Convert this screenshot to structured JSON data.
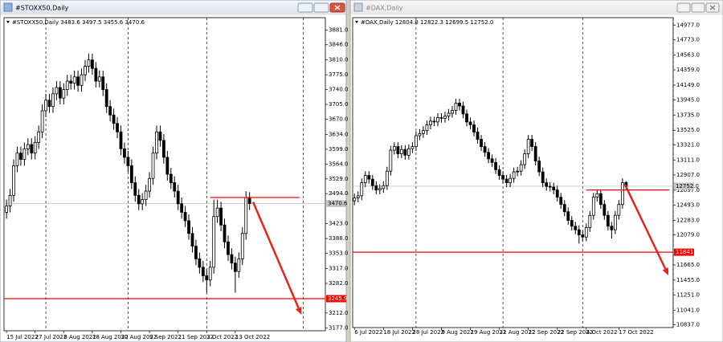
{
  "chart_data": [
    {
      "type": "candlestick",
      "window_title": "#STOXX50,Daily",
      "title": "#STOXX50,Daily  3483.6 3497.5 3455.6 3470.6",
      "xlim": [
        -0.7,
        89.2
      ],
      "ylim": [
        3170,
        3910
      ],
      "xticks": [
        {
          "value": 0,
          "label": "15 Jul 2022"
        },
        {
          "value": 8,
          "label": "27 Jul 2022"
        },
        {
          "value": 16,
          "label": "8 Aug 2022"
        },
        {
          "value": 24,
          "label": "18 Aug 2022"
        },
        {
          "value": 32,
          "label": "30 Aug 2022"
        },
        {
          "value": 40,
          "label": "9 Sep 2022"
        },
        {
          "value": 48,
          "label": "21 Sep 2022"
        },
        {
          "value": 56,
          "label": "3 Oct 2022"
        },
        {
          "value": 64,
          "label": "13 Oct 2022"
        }
      ],
      "yticks": [
        {
          "value": 3881,
          "label": "3881.0"
        },
        {
          "value": 3846,
          "label": "3846.0"
        },
        {
          "value": 3810,
          "label": "3810.0"
        },
        {
          "value": 3775,
          "label": "3775.0"
        },
        {
          "value": 3740,
          "label": "3740.0"
        },
        {
          "value": 3705,
          "label": "3705.0"
        },
        {
          "value": 3670,
          "label": "3670.0"
        },
        {
          "value": 3634,
          "label": "3634.0"
        },
        {
          "value": 3599,
          "label": "3599.0"
        },
        {
          "value": 3564,
          "label": "3564.0"
        },
        {
          "value": 3529,
          "label": "3529.0"
        },
        {
          "value": 3494,
          "label": "3494.0"
        },
        {
          "value": 3423,
          "label": "3423.0"
        },
        {
          "value": 3388,
          "label": "3388.0"
        },
        {
          "value": 3353,
          "label": "3353.0"
        },
        {
          "value": 3317,
          "label": "3317.0"
        },
        {
          "value": 3282,
          "label": "3282.0"
        },
        {
          "value": 3212,
          "label": "3212.0"
        },
        {
          "value": 3177,
          "label": "3177.0"
        }
      ],
      "separators": [
        11,
        34,
        56,
        83
      ],
      "open": [
        3450,
        3465,
        3490,
        3560,
        3590,
        3575,
        3600,
        3610,
        3590,
        3615,
        3640,
        3690,
        3715,
        3700,
        3730,
        3745,
        3720,
        3740,
        3760,
        3755,
        3770,
        3750,
        3775,
        3795,
        3810,
        3790,
        3760,
        3770,
        3740,
        3700,
        3680,
        3660,
        3640,
        3600,
        3580,
        3560,
        3520,
        3490,
        3470,
        3480,
        3500,
        3530,
        3590,
        3640,
        3620,
        3580,
        3540,
        3520,
        3500,
        3470,
        3450,
        3430,
        3400,
        3370,
        3340,
        3320,
        3300,
        3290,
        3320,
        3440,
        3460,
        3420,
        3380,
        3350,
        3330,
        3310,
        3340,
        3400,
        3483.6
      ],
      "high": [
        3480,
        3505,
        3575,
        3605,
        3605,
        3615,
        3625,
        3625,
        3630,
        3655,
        3705,
        3730,
        3730,
        3745,
        3760,
        3760,
        3755,
        3775,
        3775,
        3785,
        3785,
        3790,
        3810,
        3825,
        3825,
        3805,
        3785,
        3785,
        3755,
        3715,
        3695,
        3675,
        3655,
        3615,
        3595,
        3575,
        3535,
        3505,
        3495,
        3515,
        3545,
        3605,
        3655,
        3655,
        3635,
        3595,
        3555,
        3535,
        3515,
        3485,
        3465,
        3445,
        3415,
        3385,
        3355,
        3335,
        3315,
        3335,
        3480,
        3480,
        3475,
        3435,
        3395,
        3365,
        3345,
        3355,
        3415,
        3500,
        3497.5
      ],
      "low": [
        3435,
        3450,
        3475,
        3545,
        3560,
        3560,
        3585,
        3575,
        3575,
        3600,
        3625,
        3675,
        3685,
        3685,
        3715,
        3705,
        3705,
        3725,
        3740,
        3740,
        3735,
        3735,
        3760,
        3780,
        3775,
        3745,
        3745,
        3725,
        3685,
        3665,
        3645,
        3625,
        3585,
        3565,
        3545,
        3505,
        3475,
        3455,
        3455,
        3465,
        3485,
        3515,
        3575,
        3605,
        3565,
        3525,
        3505,
        3485,
        3455,
        3435,
        3415,
        3385,
        3355,
        3325,
        3305,
        3285,
        3260,
        3275,
        3305,
        3425,
        3405,
        3365,
        3335,
        3315,
        3260,
        3295,
        3325,
        3385,
        3455.6
      ],
      "close": [
        3465,
        3490,
        3560,
        3590,
        3575,
        3600,
        3610,
        3590,
        3615,
        3640,
        3690,
        3715,
        3700,
        3730,
        3745,
        3720,
        3740,
        3760,
        3755,
        3770,
        3750,
        3775,
        3795,
        3810,
        3790,
        3760,
        3770,
        3740,
        3700,
        3680,
        3660,
        3640,
        3600,
        3580,
        3560,
        3520,
        3490,
        3470,
        3480,
        3500,
        3530,
        3590,
        3640,
        3620,
        3580,
        3540,
        3520,
        3500,
        3470,
        3450,
        3430,
        3400,
        3370,
        3340,
        3320,
        3300,
        3290,
        3320,
        3440,
        3460,
        3420,
        3380,
        3350,
        3330,
        3310,
        3340,
        3400,
        3485,
        3470.6
      ],
      "current_price": {
        "value": 3470.6,
        "label": "3470.6"
      },
      "levels": [
        {
          "value": 3485,
          "x": [
            57,
            82
          ],
          "color": "#ff0000"
        },
        {
          "value": 3245.9,
          "label": "3245.9",
          "color": "#ff0000"
        }
      ],
      "arrow": {
        "x": [
          69,
          82.5
        ],
        "y": [
          3474,
          3208
        ],
        "color": "#e8231a"
      }
    },
    {
      "type": "candlestick",
      "window_title": "#DAX,Daily",
      "title": "#DAX,Daily  12804.8 12822.3 12699.5 12752.0",
      "xlim": [
        -0.5,
        88
      ],
      "ylim": [
        10800,
        15080
      ],
      "xticks": [
        {
          "value": 0,
          "label": "6 Jul 2022"
        },
        {
          "value": 8,
          "label": "18 Jul 2022"
        },
        {
          "value": 16,
          "label": "28 Jul 2022"
        },
        {
          "value": 24,
          "label": "9 Aug 2022"
        },
        {
          "value": 32,
          "label": "19 Aug 2022"
        },
        {
          "value": 40,
          "label": "31 Aug 2022"
        },
        {
          "value": 48,
          "label": "12 Sep 2022"
        },
        {
          "value": 56,
          "label": "22 Sep 2022"
        },
        {
          "value": 64,
          "label": "4 Oct 2022"
        },
        {
          "value": 73,
          "label": "17 Oct 2022"
        }
      ],
      "yticks": [
        {
          "value": 14977,
          "label": "14977.0"
        },
        {
          "value": 14773,
          "label": "14773.0"
        },
        {
          "value": 14563,
          "label": "14563.0"
        },
        {
          "value": 14359,
          "label": "14359.0"
        },
        {
          "value": 14149,
          "label": "14149.0"
        },
        {
          "value": 13945,
          "label": "13945.0"
        },
        {
          "value": 13735,
          "label": "13735.0"
        },
        {
          "value": 13525,
          "label": "13525.0"
        },
        {
          "value": 13321,
          "label": "13321.0"
        },
        {
          "value": 13111,
          "label": "13111.0"
        },
        {
          "value": 12907,
          "label": "12907.0"
        },
        {
          "value": 12697,
          "label": "12697.0"
        },
        {
          "value": 12493,
          "label": "12493.0"
        },
        {
          "value": 12283,
          "label": "12283.0"
        },
        {
          "value": 12079,
          "label": "12079.0"
        },
        {
          "value": 11665,
          "label": "11665.0"
        },
        {
          "value": 11455,
          "label": "11455.0"
        },
        {
          "value": 11251,
          "label": "11251.0"
        },
        {
          "value": 11041,
          "label": "11041.0"
        },
        {
          "value": 10837,
          "label": "10837.0"
        }
      ],
      "separators": [
        17,
        41,
        63,
        88
      ],
      "open": [
        12550,
        12590,
        12620,
        12800,
        12900,
        12850,
        12760,
        12700,
        12720,
        12760,
        12960,
        13250,
        13300,
        13200,
        13260,
        13180,
        13270,
        13300,
        13450,
        13480,
        13520,
        13600,
        13650,
        13640,
        13700,
        13690,
        13720,
        13760,
        13800,
        13900,
        13860,
        13750,
        13640,
        13600,
        13500,
        13400,
        13300,
        13220,
        13130,
        13080,
        12980,
        12900,
        12850,
        12800,
        12860,
        12950,
        12960,
        13050,
        13200,
        13400,
        13300,
        13100,
        12950,
        12800,
        12750,
        12740,
        12700,
        12600,
        12500,
        12400,
        12280,
        12200,
        12150,
        12080,
        12050,
        12180,
        12350,
        12600,
        12650,
        12500,
        12350,
        12200,
        12150,
        12350,
        12500,
        12804.8
      ],
      "high": [
        12650,
        12680,
        12860,
        12960,
        12960,
        12910,
        12820,
        12780,
        12820,
        13020,
        13310,
        13360,
        13360,
        13320,
        13320,
        13330,
        13360,
        13510,
        13540,
        13580,
        13660,
        13710,
        13710,
        13760,
        13760,
        13780,
        13820,
        13860,
        13960,
        13960,
        13920,
        13810,
        13700,
        13660,
        13560,
        13460,
        13360,
        13280,
        13190,
        13140,
        13040,
        12960,
        12910,
        12920,
        13010,
        13020,
        13110,
        13260,
        13460,
        13460,
        13360,
        13160,
        13010,
        12860,
        12810,
        12800,
        12760,
        12660,
        12560,
        12460,
        12340,
        12260,
        12210,
        12140,
        12240,
        12410,
        12660,
        12710,
        12710,
        12560,
        12410,
        12260,
        12410,
        12560,
        12860,
        12822.3
      ],
      "low": [
        12490,
        12530,
        12560,
        12740,
        12790,
        12700,
        12640,
        12640,
        12660,
        12700,
        12900,
        13190,
        13140,
        13140,
        13120,
        13120,
        13210,
        13240,
        13390,
        13420,
        13460,
        13540,
        13580,
        13580,
        13630,
        13630,
        13660,
        13700,
        13740,
        13800,
        13690,
        13580,
        13540,
        13440,
        13340,
        13240,
        13160,
        13070,
        13020,
        12920,
        12840,
        12790,
        12740,
        12740,
        12800,
        12890,
        12900,
        12990,
        13140,
        13240,
        13040,
        12890,
        12740,
        12690,
        12680,
        12640,
        12540,
        12440,
        12340,
        12220,
        12140,
        12090,
        11960,
        11990,
        11990,
        12120,
        12290,
        12540,
        12440,
        12290,
        12140,
        12030,
        12090,
        12290,
        12440,
        12699.5
      ],
      "close": [
        12590,
        12620,
        12800,
        12900,
        12850,
        12760,
        12700,
        12720,
        12760,
        12960,
        13250,
        13300,
        13200,
        13260,
        13180,
        13270,
        13300,
        13450,
        13480,
        13520,
        13600,
        13650,
        13640,
        13700,
        13690,
        13720,
        13760,
        13800,
        13900,
        13860,
        13750,
        13640,
        13600,
        13500,
        13400,
        13300,
        13220,
        13130,
        13080,
        12980,
        12900,
        12850,
        12800,
        12860,
        12950,
        12960,
        13050,
        13200,
        13400,
        13300,
        13100,
        12950,
        12800,
        12750,
        12740,
        12700,
        12600,
        12500,
        12400,
        12280,
        12200,
        12150,
        12080,
        12050,
        12180,
        12350,
        12600,
        12650,
        12500,
        12350,
        12200,
        12150,
        12350,
        12500,
        12800,
        12752.0
      ],
      "current_price": {
        "value": 12752.0,
        "label": "12752.0"
      },
      "levels": [
        {
          "value": 12700,
          "x": [
            64,
            87
          ],
          "color": "#ff0000"
        },
        {
          "value": 11841.1,
          "label": "11841.1",
          "color": "#ff0000"
        }
      ],
      "arrow": {
        "x": [
          74.7,
          86.7
        ],
        "y": [
          12774,
          11521
        ],
        "color": "#e8231a"
      }
    }
  ]
}
